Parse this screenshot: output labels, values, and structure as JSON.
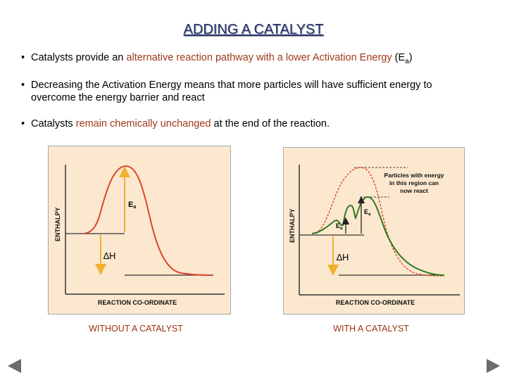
{
  "title": "ADDING A CATALYST",
  "bullets": [
    {
      "pre": "Catalysts provide an ",
      "hl": "alternative reaction pathway with a lower Activation Energy",
      "post": " (E",
      "sub": "a",
      "end": ")"
    },
    {
      "text": "Decreasing the Activation Energy means that more particles will have sufficient energy to overcome the energy barrier and react"
    },
    {
      "pre": "Catalysts ",
      "hl": "remain chemically unchanged",
      "post": " at the end of the reaction."
    }
  ],
  "bullet_symbol": "•",
  "left_diagram": {
    "ylabel": "ENTHALPY",
    "xlabel": "REACTION CO-ORDINATE",
    "ea_main": "E",
    "ea_sub": "a",
    "dh_label": "∆H",
    "caption": "WITHOUT A CATALYST"
  },
  "right_diagram": {
    "ylabel": "ENTHALPY",
    "xlabel": "REACTION CO-ORDINATE",
    "note": [
      "Particles with energy",
      "in this region can",
      "now react"
    ],
    "ea_upper_main": "E",
    "ea_upper_sub": "a",
    "ea_lower_main": "E",
    "ea_lower_sub": "a",
    "dh_label": "∆H",
    "caption": "WITH A CATALYST"
  },
  "colors": {
    "title": "#1f2f6e",
    "highlight": "#a0391a",
    "panel_bg": "#fbe8cf",
    "uncatalysed_curve": "#e0442a",
    "catalysed_curve": "#2e7a1e",
    "arrow": "#f0b030",
    "caption": "#9a3413"
  },
  "icons": {
    "prev": "left-triangle-icon",
    "next": "right-triangle-icon"
  }
}
